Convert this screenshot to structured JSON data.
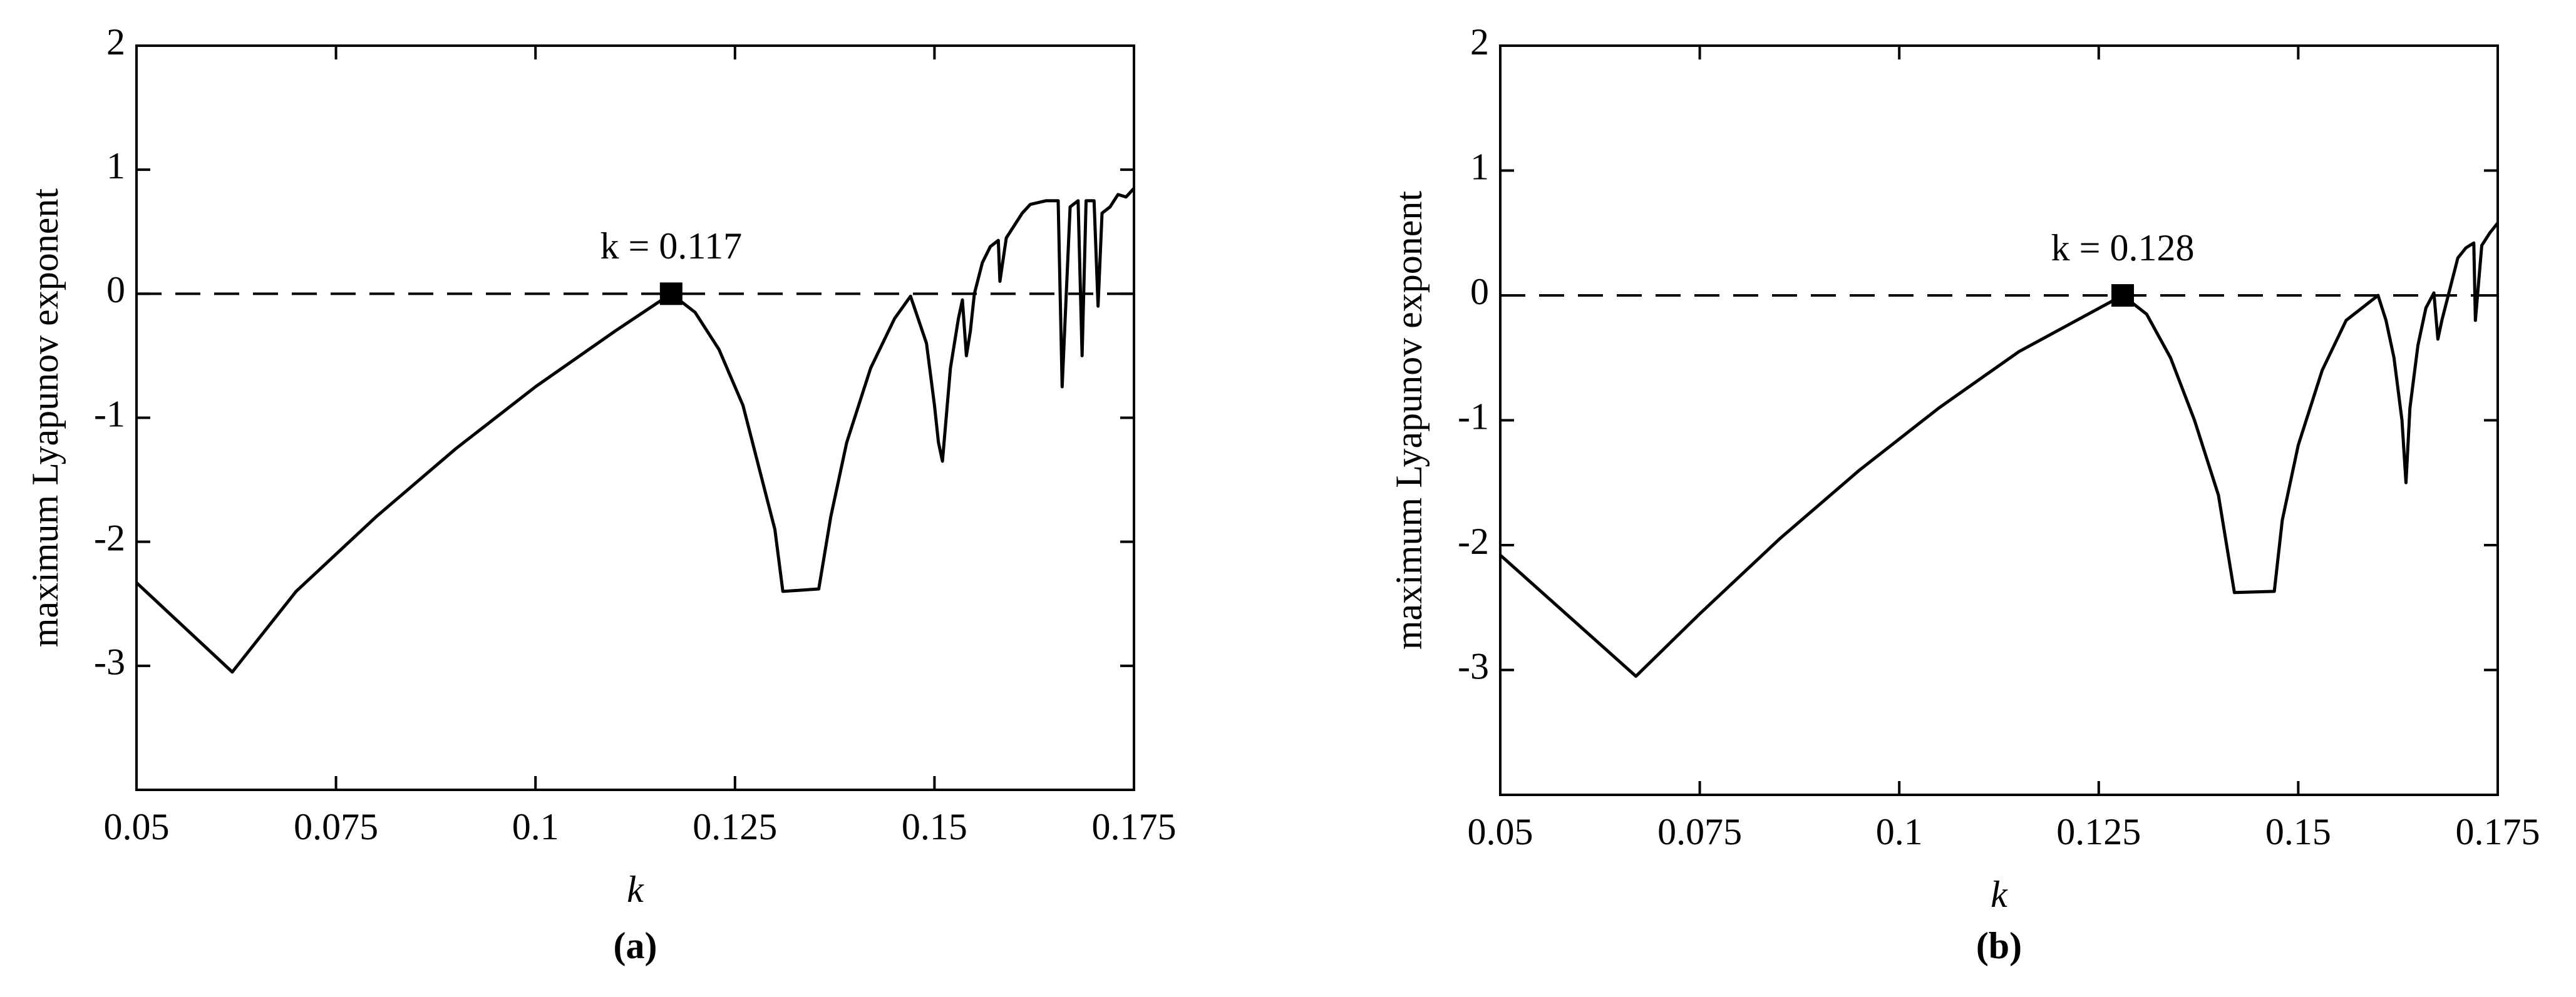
{
  "chart_data": [
    {
      "type": "line",
      "caption": "(a)",
      "x_label": "k",
      "y_label": "maximum Lyapunov exponent",
      "color": "#000000",
      "xlim": [
        0.05,
        0.175
      ],
      "xticks": [
        0.05,
        0.075,
        0.1,
        0.125,
        0.15,
        0.175
      ],
      "ylim": [
        -4,
        2
      ],
      "yticks": [
        -3,
        -2,
        -1,
        0,
        1,
        2
      ],
      "hline": 0,
      "annotation": {
        "text": "k = 0.117",
        "x": 0.117,
        "y": 0
      },
      "x": [
        0.05,
        0.062,
        0.07,
        0.08,
        0.09,
        0.1,
        0.11,
        0.117,
        0.12,
        0.123,
        0.126,
        0.128,
        0.13,
        0.131,
        0.1355,
        0.137,
        0.139,
        0.142,
        0.145,
        0.147,
        0.149,
        0.15,
        0.1505,
        0.151,
        0.152,
        0.153,
        0.1535,
        0.154,
        0.1545,
        0.155,
        0.156,
        0.157,
        0.158,
        0.1582,
        0.159,
        0.16,
        0.161,
        0.162,
        0.164,
        0.1655,
        0.166,
        0.167,
        0.168,
        0.1685,
        0.169,
        0.17,
        0.1705,
        0.171,
        0.172,
        0.173,
        0.174,
        0.175
      ],
      "values": [
        -2.33,
        -3.05,
        -2.4,
        -1.8,
        -1.25,
        -0.75,
        -0.3,
        0,
        -0.15,
        -0.45,
        -0.9,
        -1.4,
        -1.9,
        -2.4,
        -2.38,
        -1.8,
        -1.2,
        -0.6,
        -0.2,
        -0.02,
        -0.4,
        -0.9,
        -1.2,
        -1.35,
        -0.6,
        -0.2,
        -0.05,
        -0.5,
        -0.3,
        0,
        0.25,
        0.38,
        0.43,
        0.1,
        0.45,
        0.55,
        0.65,
        0.72,
        0.75,
        0.75,
        -0.75,
        0.7,
        0.75,
        -0.5,
        0.75,
        0.75,
        -0.1,
        0.65,
        0.7,
        0.8,
        0.78,
        0.85
      ]
    },
    {
      "type": "line",
      "caption": "(b)",
      "x_label": "k",
      "y_label": "maximum Lyapunov exponent",
      "color": "#000000",
      "xlim": [
        0.05,
        0.175
      ],
      "xticks": [
        0.05,
        0.075,
        0.1,
        0.125,
        0.15,
        0.175
      ],
      "ylim": [
        -4,
        2
      ],
      "yticks": [
        -3,
        -2,
        -1,
        0,
        1,
        2
      ],
      "hline": 0,
      "annotation": {
        "text": "k = 0.128",
        "x": 0.128,
        "y": 0
      },
      "x": [
        0.05,
        0.067,
        0.075,
        0.085,
        0.095,
        0.105,
        0.115,
        0.128,
        0.131,
        0.134,
        0.137,
        0.14,
        0.142,
        0.147,
        0.148,
        0.15,
        0.153,
        0.156,
        0.16,
        0.161,
        0.162,
        0.163,
        0.1635,
        0.164,
        0.165,
        0.166,
        0.167,
        0.1675,
        0.168,
        0.169,
        0.17,
        0.171,
        0.172,
        0.1722,
        0.173,
        0.174,
        0.175
      ],
      "values": [
        -2.08,
        -3.05,
        -2.55,
        -1.95,
        -1.4,
        -0.9,
        -0.45,
        0,
        -0.15,
        -0.5,
        -1.0,
        -1.6,
        -2.38,
        -2.37,
        -1.8,
        -1.2,
        -0.6,
        -0.2,
        0,
        -0.2,
        -0.5,
        -1.0,
        -1.5,
        -0.9,
        -0.4,
        -0.1,
        0.02,
        -0.35,
        -0.2,
        0.05,
        0.3,
        0.38,
        0.42,
        -0.2,
        0.4,
        0.5,
        0.58
      ]
    }
  ]
}
